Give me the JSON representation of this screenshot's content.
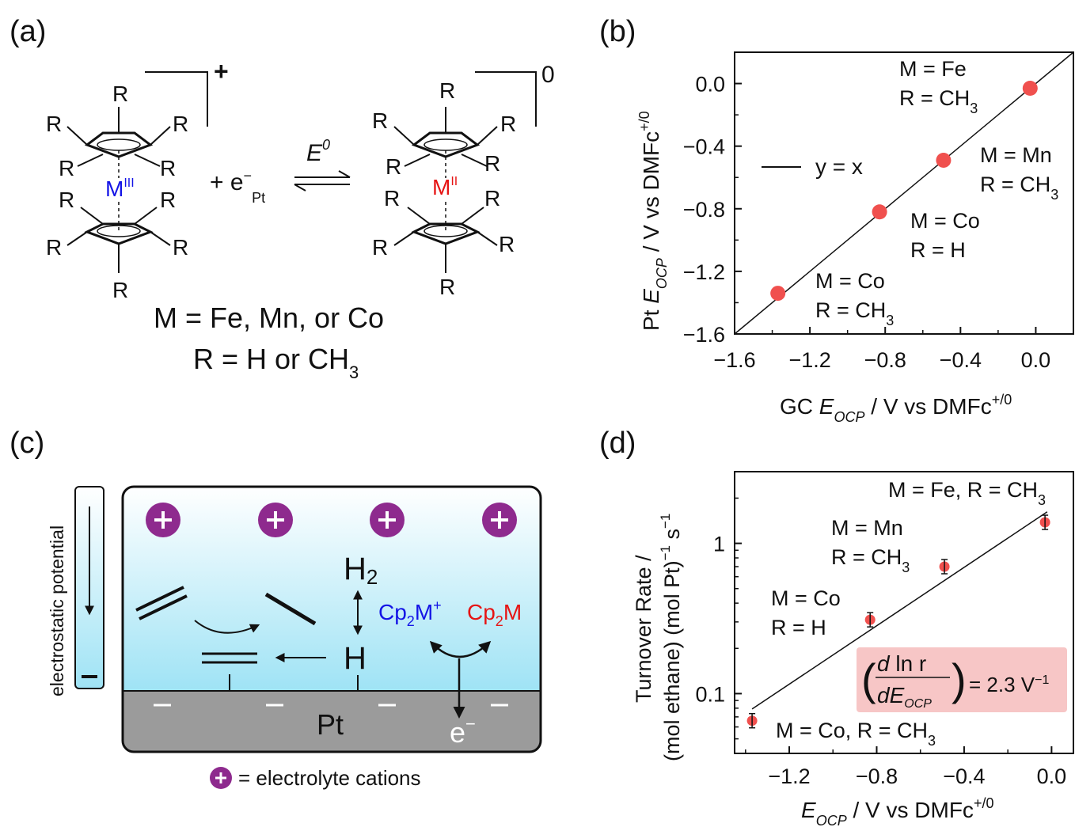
{
  "panel_a": {
    "label": "(a)",
    "charge_plus": "+",
    "charge_zero": "0",
    "m3": "M",
    "m3_sup": "III",
    "m2": "M",
    "m2_sup": "II",
    "electron": "+ e",
    "electron_sup": "−",
    "electron_sub": "Pt",
    "e0": "E",
    "e0_sup": "0",
    "r": "R",
    "caption_m": "M = Fe, Mn, or Co",
    "caption_r": "R = H or CH",
    "caption_r_sub": "3",
    "colors": {
      "m3": "#1414e6",
      "m2": "#e61414"
    }
  },
  "panel_b": {
    "label": "(b)",
    "legend": "y = x",
    "annotations": [
      {
        "line1": "M = Fe",
        "line2": "R = CH",
        "sub": "3"
      },
      {
        "line1": "M = Mn",
        "line2": "R = CH",
        "sub": "3"
      },
      {
        "line1": "M = Co",
        "line2": "R = H",
        "sub": ""
      },
      {
        "line1": "M = Co",
        "line2": "R = CH",
        "sub": "3"
      }
    ],
    "xlabel": {
      "pre": "GC ",
      "italic": "E",
      "sub": "OCP",
      "post": " / V vs DMFc",
      "sup": "+/0"
    },
    "ylabel": {
      "pre": "Pt ",
      "italic": "E",
      "sub": "OCP",
      "post": " / V vs DMFc",
      "sup": "+/0"
    },
    "chart_data": {
      "type": "scatter",
      "x": [
        -1.37,
        -0.83,
        -0.49,
        -0.03
      ],
      "y": [
        -1.34,
        -0.82,
        -0.49,
        -0.03
      ],
      "xlim": [
        -1.6,
        0.2
      ],
      "ylim": [
        -1.6,
        0.2
      ],
      "xticks": [
        "−1.6",
        "−1.2",
        "−0.8",
        "−0.4",
        "0.0"
      ],
      "yticks": [
        "−1.6",
        "−1.2",
        "−0.8",
        "−0.4",
        "0.0"
      ],
      "marker_color": "#f0504e"
    }
  },
  "panel_c": {
    "label": "(c)",
    "potential_label": "electrostatic potential",
    "minus": "−",
    "plus": "+",
    "h2": "H",
    "h2_sub": "2",
    "h": "H",
    "cp2m_plus": "Cp",
    "cp2m_plus_sub": "2",
    "cp2m_plus_tail": "M",
    "cp2m_plus_sup": "+",
    "cp2m": "Cp",
    "cp2m_sub": "2",
    "cp2m_tail": "M",
    "pt": "Pt",
    "electron": "e",
    "electron_sup": "−",
    "cation_caption": "= electrolyte cations",
    "colors": {
      "cation": "#8e2a8e",
      "cp2m_plus": "#1414e6",
      "cp2m": "#e61414",
      "metal": "#9b9b9b"
    }
  },
  "panel_d": {
    "label": "(d)",
    "annotations": [
      {
        "line1": "M = Fe, R = CH",
        "sub": "3"
      },
      {
        "line1": "M = Mn",
        "line2": "R = CH",
        "sub": "3"
      },
      {
        "line1": "M = Co",
        "line2": "R = H",
        "sub": ""
      },
      {
        "line1": "M = Co, R = CH",
        "sub": "3"
      }
    ],
    "slope_box": {
      "num": "d ln r",
      "den_italic": "dE",
      "den_sub": "OCP",
      "value": "= 2.3 V",
      "value_sup": "−1"
    },
    "xlabel": {
      "italic": "E",
      "sub": "OCP",
      "post": " / V vs DMFc",
      "sup": "+/0"
    },
    "ylabel_1": "Turnover Rate /",
    "ylabel_2": "(mol ethane) (mol Pt)",
    "ylabel_2_sup": "−1",
    "ylabel_2_tail": " s",
    "ylabel_2_tail_sup": "−1",
    "chart_data": {
      "type": "scatter",
      "scale_y": "log",
      "x": [
        -1.37,
        -0.83,
        -0.49,
        -0.03
      ],
      "y": [
        0.066,
        0.31,
        0.7,
        1.38
      ],
      "fit_x": [
        -1.37,
        -0.02
      ],
      "fit_y": [
        0.079,
        1.62
      ],
      "xlim": [
        -1.45,
        0.1
      ],
      "ylim": [
        0.04,
        3.0
      ],
      "xticks": [
        "−1.2",
        "−0.8",
        "−0.4",
        "0.0"
      ],
      "yticks": [
        "0.1",
        "1"
      ],
      "marker_color": "#f0504e"
    }
  }
}
